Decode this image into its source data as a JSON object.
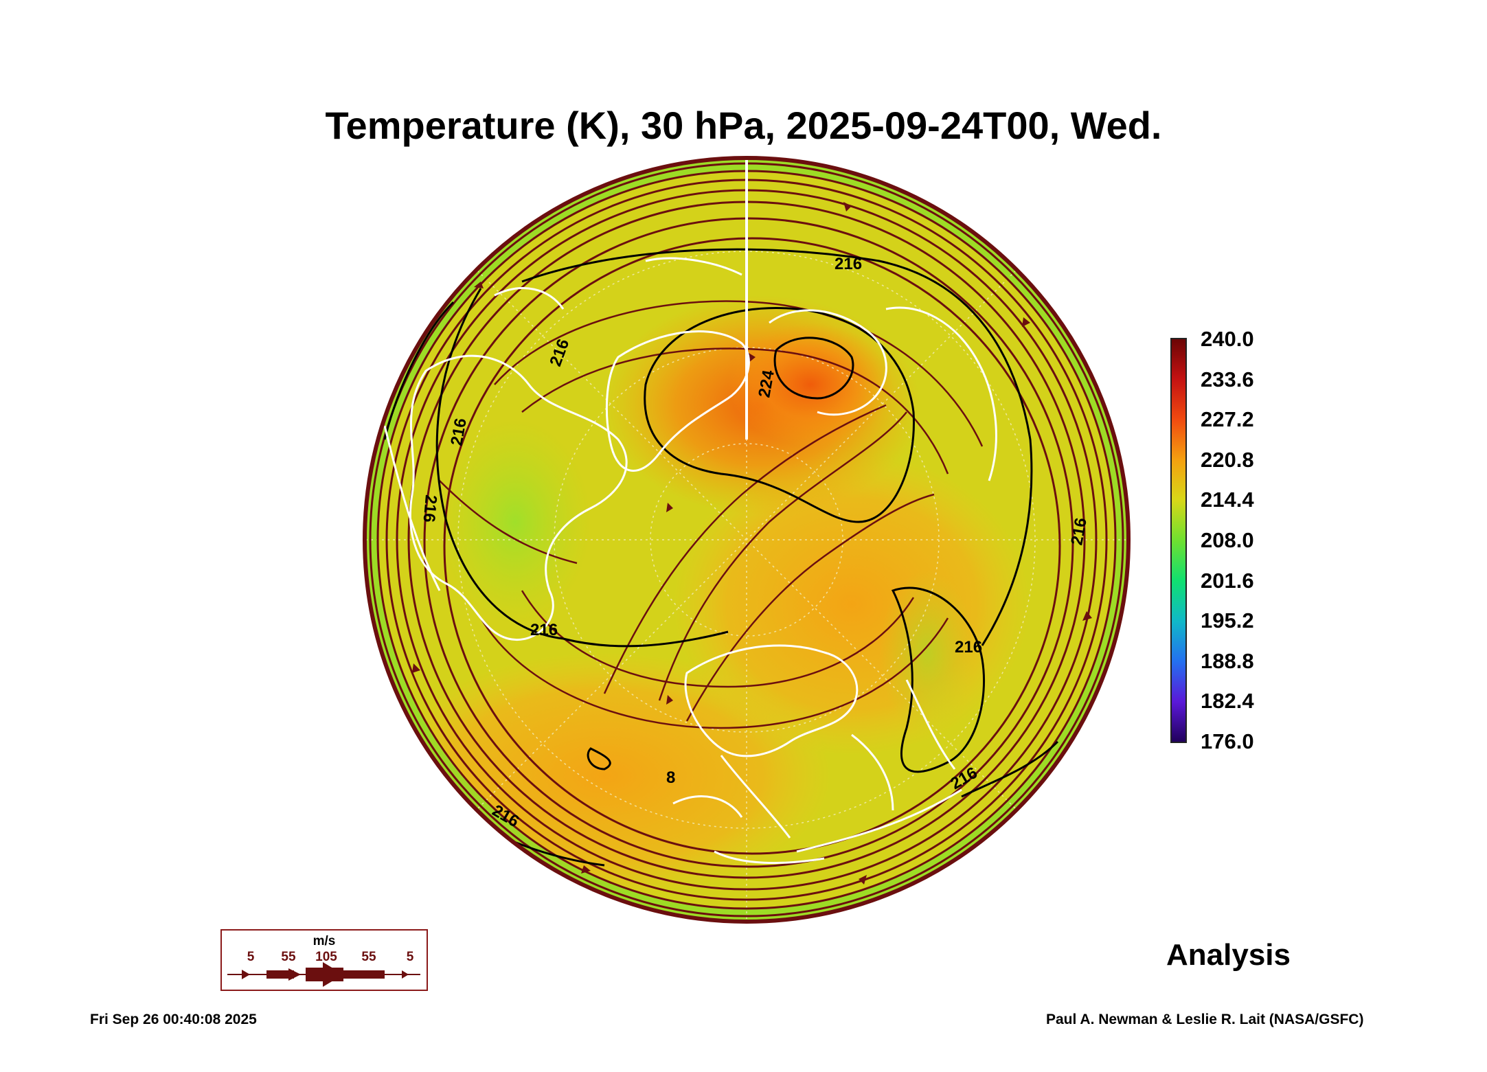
{
  "title": "Temperature (K), 30 hPa, 2025-09-24T00, Wed.",
  "colorbar": {
    "labels": [
      "240.0",
      "233.6",
      "227.2",
      "220.8",
      "214.4",
      "208.0",
      "201.6",
      "195.2",
      "188.8",
      "182.4",
      "176.0"
    ]
  },
  "contour_labels": {
    "c1": "216",
    "c2": "216",
    "c3": "216",
    "c4": "216",
    "c5": "216",
    "c6": "216",
    "c7": "216",
    "c8": "216",
    "c9": "216",
    "c10": "224",
    "c11": "8"
  },
  "wind_legend": {
    "unit": "m/s",
    "values": [
      "5",
      "55",
      "105",
      "55",
      "5"
    ]
  },
  "analysis_label": "Analysis",
  "footer": {
    "timestamp": "Fri Sep 26 00:40:08 2025",
    "credit": "Paul A. Newman & Leslie R. Lait (NASA/GSFC)"
  },
  "colors": {
    "ring": "#6b0f0f",
    "field_base": "#d4d21a",
    "warm": "#f07010",
    "coast": "#ffffff"
  }
}
